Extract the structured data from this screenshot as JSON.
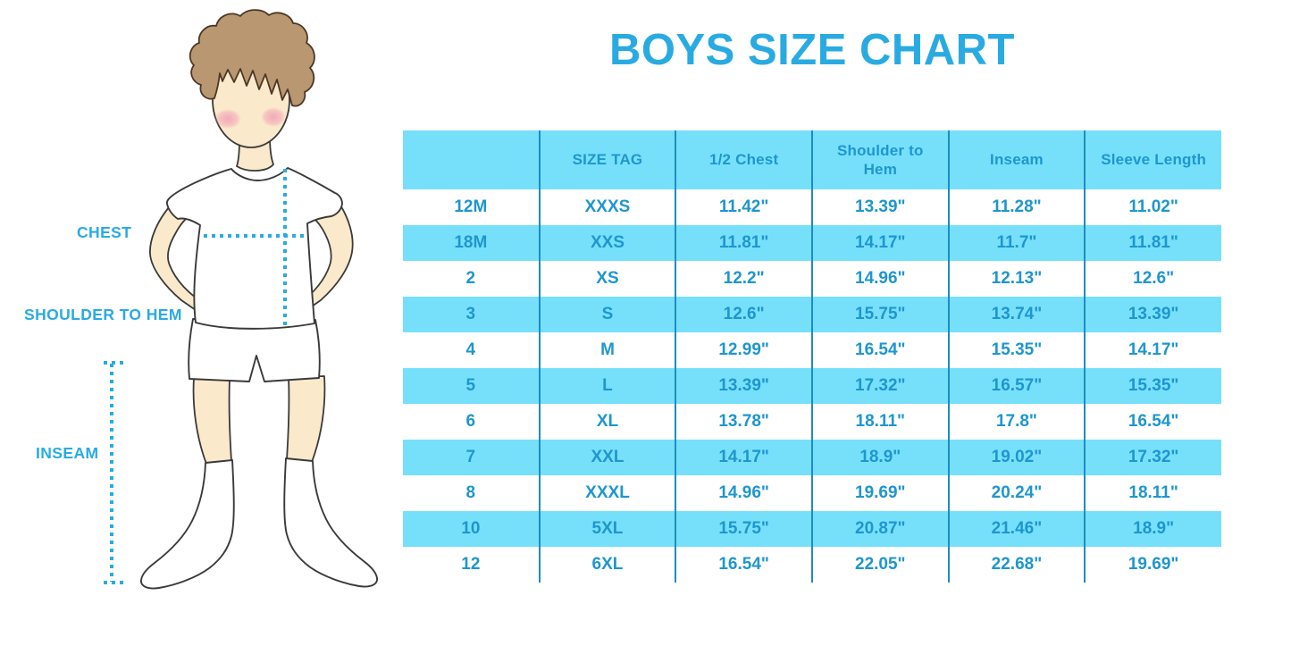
{
  "title": "BOYS SIZE CHART",
  "figure": {
    "description": "cartoon boy in white t-shirt, shorts and knee socks with measurement guides",
    "labels": {
      "chest": "CHEST",
      "shoulder_to_hem": "SHOULDER TO HEM",
      "inseam": "INSEAM"
    }
  },
  "table": {
    "columns": [
      "",
      "SIZE TAG",
      "1/2 Chest",
      "Shoulder to Hem",
      "Inseam",
      "Sleeve Length"
    ],
    "rows": [
      [
        "12M",
        "XXXS",
        "11.42\"",
        "13.39\"",
        "11.28\"",
        "11.02\""
      ],
      [
        "18M",
        "XXS",
        "11.81\"",
        "14.17\"",
        "11.7\"",
        "11.81\""
      ],
      [
        "2",
        "XS",
        "12.2\"",
        "14.96\"",
        "12.13\"",
        "12.6\""
      ],
      [
        "3",
        "S",
        "12.6\"",
        "15.75\"",
        "13.74\"",
        "13.39\""
      ],
      [
        "4",
        "M",
        "12.99\"",
        "16.54\"",
        "15.35\"",
        "14.17\""
      ],
      [
        "5",
        "L",
        "13.39\"",
        "17.32\"",
        "16.57\"",
        "15.35\""
      ],
      [
        "6",
        "XL",
        "13.78\"",
        "18.11\"",
        "17.8\"",
        "16.54\""
      ],
      [
        "7",
        "XXL",
        "14.17\"",
        "18.9\"",
        "19.02\"",
        "17.32\""
      ],
      [
        "8",
        "XXXL",
        "14.96\"",
        "19.69\"",
        "20.24\"",
        "18.11\""
      ],
      [
        "10",
        "5XL",
        "15.75\"",
        "20.87\"",
        "21.46\"",
        "18.9\""
      ],
      [
        "12",
        "6XL",
        "16.54\"",
        "22.05\"",
        "22.68\"",
        "19.69\""
      ]
    ]
  },
  "colors": {
    "accent": "#29ABE2",
    "band": "#76E0FB",
    "cell_text": "#1E96CE",
    "divider": "#1D8DC0",
    "skin": "#FBE9CB",
    "hair": "#B99770",
    "hair_outline": "#4A3826",
    "outline": "#3A3A3A",
    "blush": "#F1A3B6"
  }
}
